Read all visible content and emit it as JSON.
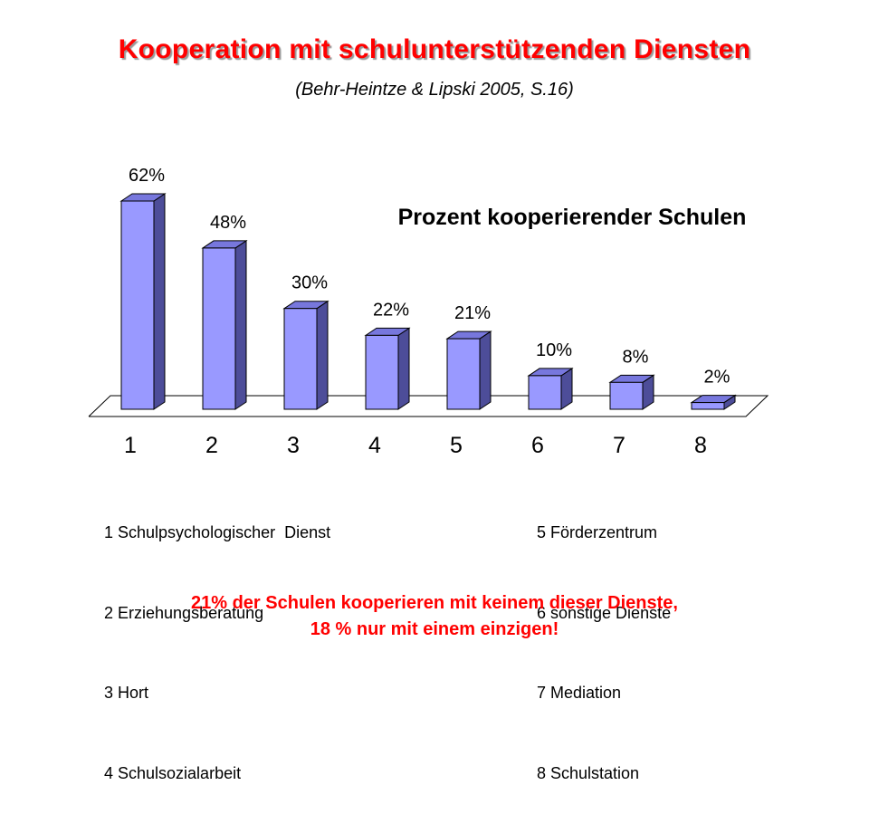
{
  "header": {
    "title": "Kooperation mit schulunterstützenden Diensten",
    "subtitle": "(Behr-Heintze & Lipski 2005, S.16)"
  },
  "legend": {
    "left": [
      "1 Schulpsychologischer  Dienst",
      "2 Erziehungsberatung",
      "3 Hort",
      "4 Schulsozialarbeit"
    ],
    "right": [
      "5 Förderzentrum",
      "6 sonstige Dienste",
      "7 Mediation",
      "8 Schulstation"
    ]
  },
  "footnote": {
    "line1": "21% der Schulen kooperieren mit keinem dieser Dienste,",
    "line2": "18 % nur mit einem einzigen!"
  },
  "colors": {
    "title": "#ff0000",
    "bar_front": "#9999ff",
    "bar_top": "#7777dd",
    "bar_side": "#4d4d99"
  },
  "chart_data": {
    "type": "bar",
    "title": "Prozent kooperierender Schulen",
    "categories": [
      "1",
      "2",
      "3",
      "4",
      "5",
      "6",
      "7",
      "8"
    ],
    "values": [
      62,
      48,
      30,
      22,
      21,
      10,
      8,
      2
    ],
    "value_labels": [
      "62%",
      "48%",
      "30%",
      "22%",
      "21%",
      "10%",
      "8%",
      "2%"
    ],
    "xlabel": "",
    "ylabel": "",
    "ylim": [
      0,
      62
    ],
    "grid": false,
    "style": "3d-column"
  }
}
